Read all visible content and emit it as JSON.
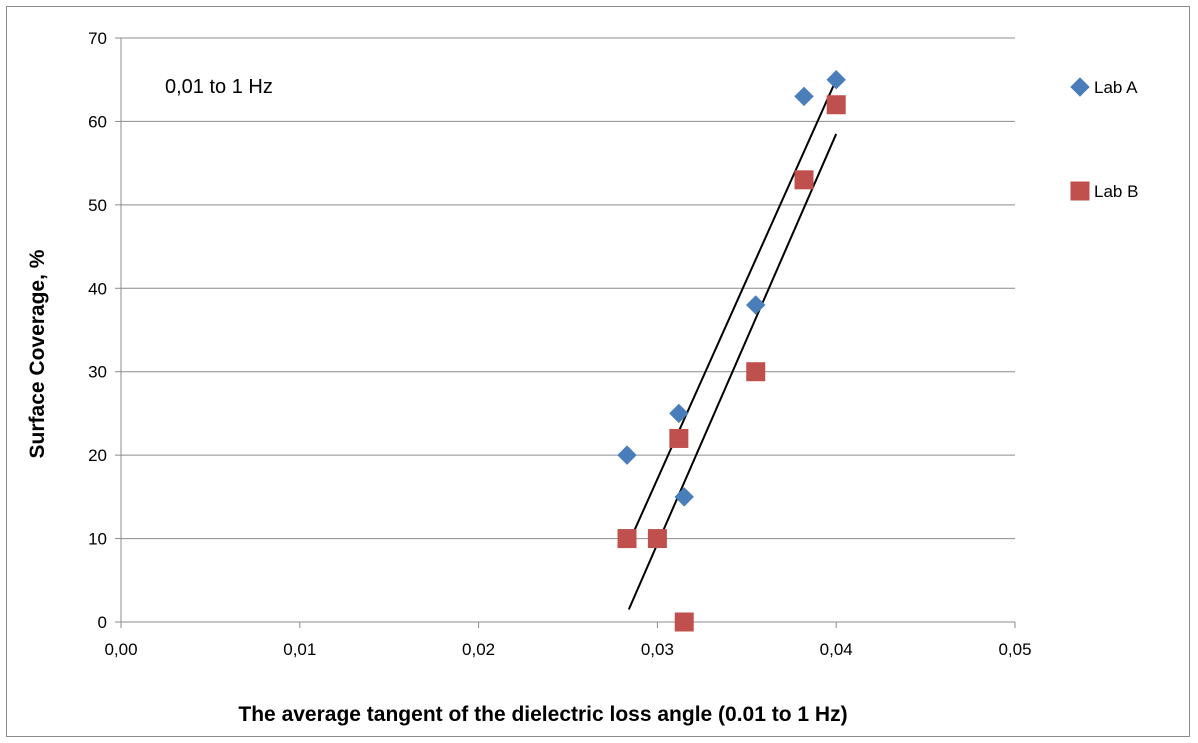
{
  "chart_data": {
    "type": "scatter",
    "title": "",
    "annotation": "0,01 to 1 Hz",
    "xlabel": "The average tangent of the dielectric loss angle (0.01 to 1 Hz)",
    "ylabel": "Surface Coverage, %",
    "xlim": [
      0,
      0.05
    ],
    "ylim": [
      0,
      70
    ],
    "x_ticks": [
      "0,00",
      "0,01",
      "0,02",
      "0,03",
      "0,04",
      "0,05"
    ],
    "y_ticks": [
      "0",
      "10",
      "20",
      "30",
      "40",
      "50",
      "60",
      "70"
    ],
    "grid": "horizontal",
    "legend_position": "right",
    "series": [
      {
        "name": "Lab A",
        "marker": "diamond",
        "color": "#4a7ebb",
        "points": [
          [
            0.0283,
            20
          ],
          [
            0.0312,
            25
          ],
          [
            0.0315,
            15
          ],
          [
            0.0355,
            38
          ],
          [
            0.0382,
            63
          ],
          [
            0.04,
            65
          ]
        ]
      },
      {
        "name": "Lab B",
        "marker": "square",
        "color": "#c0504d",
        "points": [
          [
            0.0283,
            10
          ],
          [
            0.03,
            10
          ],
          [
            0.0312,
            22
          ],
          [
            0.0315,
            0
          ],
          [
            0.0355,
            30
          ],
          [
            0.0382,
            53
          ],
          [
            0.04,
            62
          ]
        ]
      }
    ],
    "trendlines": [
      {
        "series": "Lab A",
        "from": [
          0.0283,
          9
        ],
        "to": [
          0.04,
          65
        ]
      },
      {
        "series": "Lab B",
        "from": [
          0.0284,
          1.5
        ],
        "to": [
          0.04,
          58.5
        ]
      }
    ]
  }
}
